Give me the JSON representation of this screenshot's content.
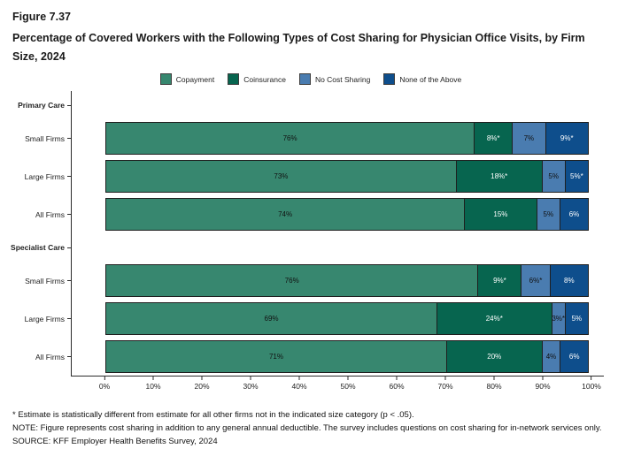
{
  "figure": {
    "label": "Figure 7.37",
    "title": "Percentage of Covered Workers with the Following Types of Cost Sharing for Physician Office Visits, by Firm Size, 2024"
  },
  "legend": [
    {
      "label": "Copayment",
      "color": "#37876F",
      "text_color": "#111111"
    },
    {
      "label": "Coinsurance",
      "color": "#07654F",
      "text_color": "#ffffff"
    },
    {
      "label": "No Cost Sharing",
      "color": "#4A7CB0",
      "text_color": "#111111"
    },
    {
      "label": "None of the Above",
      "color": "#0E4E8C",
      "text_color": "#ffffff"
    }
  ],
  "chart_data": {
    "type": "bar",
    "orientation": "horizontal",
    "stacked": true,
    "series_names": [
      "Copayment",
      "Coinsurance",
      "No Cost Sharing",
      "None of the Above"
    ],
    "groups": [
      {
        "group": "Primary Care",
        "rows": [
          {
            "category": "Small Firms",
            "values": [
              76,
              8,
              7,
              9
            ],
            "labels": [
              "76%",
              "8%*",
              "7%",
              "9%*"
            ]
          },
          {
            "category": "Large Firms",
            "values": [
              73,
              18,
              5,
              5
            ],
            "labels": [
              "73%",
              "18%*",
              "5%",
              "5%*"
            ]
          },
          {
            "category": "All Firms",
            "values": [
              74,
              15,
              5,
              6
            ],
            "labels": [
              "74%",
              "15%",
              "5%",
              "6%"
            ]
          }
        ]
      },
      {
        "group": "Specialist Care",
        "rows": [
          {
            "category": "Small Firms",
            "values": [
              76,
              9,
              6,
              8
            ],
            "labels": [
              "76%",
              "9%*",
              "6%*",
              "8%"
            ]
          },
          {
            "category": "Large Firms",
            "values": [
              69,
              24,
              3,
              5
            ],
            "labels": [
              "69%",
              "24%*",
              "3%*",
              "5%"
            ]
          },
          {
            "category": "All Firms",
            "values": [
              71,
              20,
              4,
              6
            ],
            "labels": [
              "71%",
              "20%",
              "4%",
              "6%"
            ]
          }
        ]
      }
    ],
    "x_ticks": [
      "0%",
      "10%",
      "20%",
      "30%",
      "40%",
      "50%",
      "60%",
      "70%",
      "80%",
      "90%",
      "100%"
    ],
    "xlim": [
      0,
      100
    ],
    "grid": false,
    "legend_position": "top",
    "xlabel": "",
    "ylabel": ""
  },
  "footnotes": [
    "* Estimate is statistically different from estimate for all other firms not in the indicated size category (p < .05).",
    "NOTE: Figure represents cost sharing in addition to any general annual deductible. The survey includes questions on cost sharing for in-network services only.",
    "SOURCE: KFF Employer Health Benefits Survey, 2024"
  ]
}
